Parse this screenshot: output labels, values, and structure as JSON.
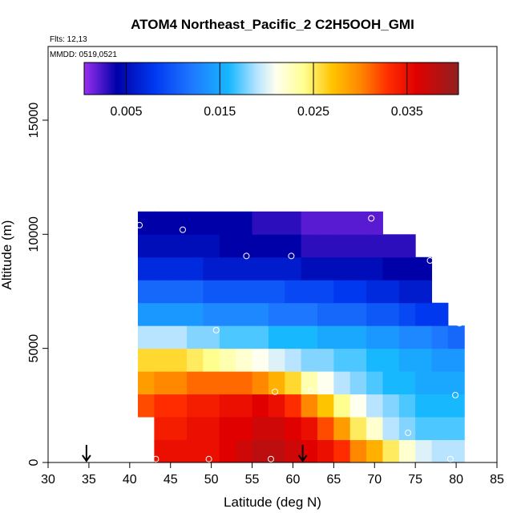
{
  "chart_data": {
    "type": "heatmap",
    "title": "ATOM4 Northeast_Pacific_2 C2H5OOH_GMI",
    "flights": "Flts: 12,13",
    "dates": "MMDD: 0519,0521",
    "xlabel": "Latitude (deg N)",
    "ylabel": "Altitude (m)",
    "xlim": [
      30,
      85
    ],
    "ylim": [
      0,
      18230
    ],
    "xticks": [
      30,
      35,
      40,
      45,
      50,
      55,
      60,
      65,
      70,
      75,
      80,
      85
    ],
    "yticks": [
      0,
      5000,
      10000,
      15000
    ],
    "clim": [
      0.0005,
      0.0405
    ],
    "cticks": [
      0.005,
      0.015,
      0.025,
      0.035
    ],
    "colorscale": [
      [
        0.0005,
        "#9a30f0"
      ],
      [
        0.004,
        "#0000a8"
      ],
      [
        0.008,
        "#0038f0"
      ],
      [
        0.012,
        "#1e78ff"
      ],
      [
        0.016,
        "#18b8ff"
      ],
      [
        0.019,
        "#b8e4ff"
      ],
      [
        0.021,
        "#fffff0"
      ],
      [
        0.024,
        "#ffff90"
      ],
      [
        0.027,
        "#ffc400"
      ],
      [
        0.03,
        "#ff8800"
      ],
      [
        0.033,
        "#ff2c00"
      ],
      [
        0.036,
        "#e00000"
      ],
      [
        0.0405,
        "#902020"
      ]
    ],
    "x": [
      42,
      44,
      46,
      48,
      50,
      52,
      54,
      56,
      58,
      60,
      62,
      64,
      66,
      68,
      70,
      72,
      74,
      76,
      78,
      80
    ],
    "y": [
      500,
      1500,
      2500,
      3500,
      4500,
      5500,
      6500,
      7500,
      8500,
      9500,
      10500
    ],
    "z": [
      [
        null,
        0.035,
        0.035,
        0.035,
        0.035,
        0.036,
        0.037,
        0.038,
        0.038,
        0.037,
        0.036,
        0.035,
        0.033,
        0.03,
        0.028,
        0.025,
        0.022,
        0.02,
        0.019,
        0.019
      ],
      [
        null,
        0.034,
        0.034,
        0.035,
        0.035,
        0.036,
        0.036,
        0.037,
        0.037,
        0.036,
        0.035,
        0.032,
        0.029,
        0.025,
        0.022,
        0.019,
        0.018,
        0.017,
        0.017,
        0.017
      ],
      [
        0.032,
        0.033,
        0.033,
        0.034,
        0.034,
        0.035,
        0.035,
        0.036,
        0.035,
        0.033,
        0.03,
        0.027,
        0.024,
        0.021,
        0.019,
        0.018,
        0.017,
        0.016,
        0.016,
        0.016
      ],
      [
        0.029,
        0.03,
        0.03,
        0.031,
        0.031,
        0.031,
        0.031,
        0.03,
        0.028,
        0.026,
        0.023,
        0.021,
        0.019,
        0.018,
        0.017,
        0.016,
        0.016,
        0.015,
        0.015,
        0.015
      ],
      [
        0.026,
        0.026,
        0.026,
        0.025,
        0.024,
        0.023,
        0.022,
        0.021,
        0.02,
        0.019,
        0.018,
        0.018,
        0.017,
        0.017,
        0.016,
        0.016,
        0.015,
        0.015,
        0.014,
        0.014
      ],
      [
        0.019,
        0.019,
        0.019,
        0.018,
        0.018,
        0.017,
        0.017,
        0.017,
        0.016,
        0.016,
        0.016,
        0.015,
        0.015,
        0.015,
        0.014,
        0.014,
        0.013,
        0.013,
        0.012,
        0.011
      ],
      [
        0.014,
        0.014,
        0.014,
        0.014,
        0.013,
        0.013,
        0.013,
        0.013,
        0.012,
        0.012,
        0.012,
        0.011,
        0.011,
        0.011,
        0.01,
        0.01,
        0.009,
        0.008,
        0.008,
        null
      ],
      [
        0.011,
        0.011,
        0.011,
        0.011,
        0.01,
        0.01,
        0.01,
        0.01,
        0.01,
        0.009,
        0.009,
        0.009,
        0.008,
        0.008,
        0.007,
        0.007,
        0.006,
        0.006,
        null,
        null
      ],
      [
        0.007,
        0.007,
        0.007,
        0.007,
        0.006,
        0.006,
        0.006,
        0.006,
        0.006,
        0.006,
        0.005,
        0.005,
        0.005,
        0.005,
        0.005,
        0.004,
        0.004,
        0.004,
        null,
        null
      ],
      [
        0.005,
        0.005,
        0.005,
        0.005,
        0.005,
        0.004,
        0.004,
        0.004,
        0.004,
        0.004,
        0.003,
        0.003,
        0.003,
        0.003,
        0.003,
        0.003,
        0.003,
        null,
        null,
        null
      ],
      [
        0.004,
        0.004,
        0.004,
        0.004,
        0.004,
        0.004,
        0.004,
        0.003,
        0.003,
        0.003,
        0.002,
        0.002,
        0.002,
        0.002,
        0.002,
        null,
        null,
        null,
        null,
        null
      ]
    ],
    "points": {
      "x": [
        41.2,
        46.5,
        54.3,
        59.8,
        69.6,
        76.8,
        80.4,
        50.6,
        57.8,
        62.2,
        79.9,
        74.1,
        43.2,
        49.7,
        57.3,
        79.3
      ],
      "y": [
        10400,
        10200,
        9050,
        9050,
        10700,
        8850,
        6100,
        5800,
        3100,
        3150,
        2950,
        1300,
        150,
        150,
        150,
        150
      ]
    },
    "arrows_x": [
      34.7,
      61.2
    ]
  }
}
